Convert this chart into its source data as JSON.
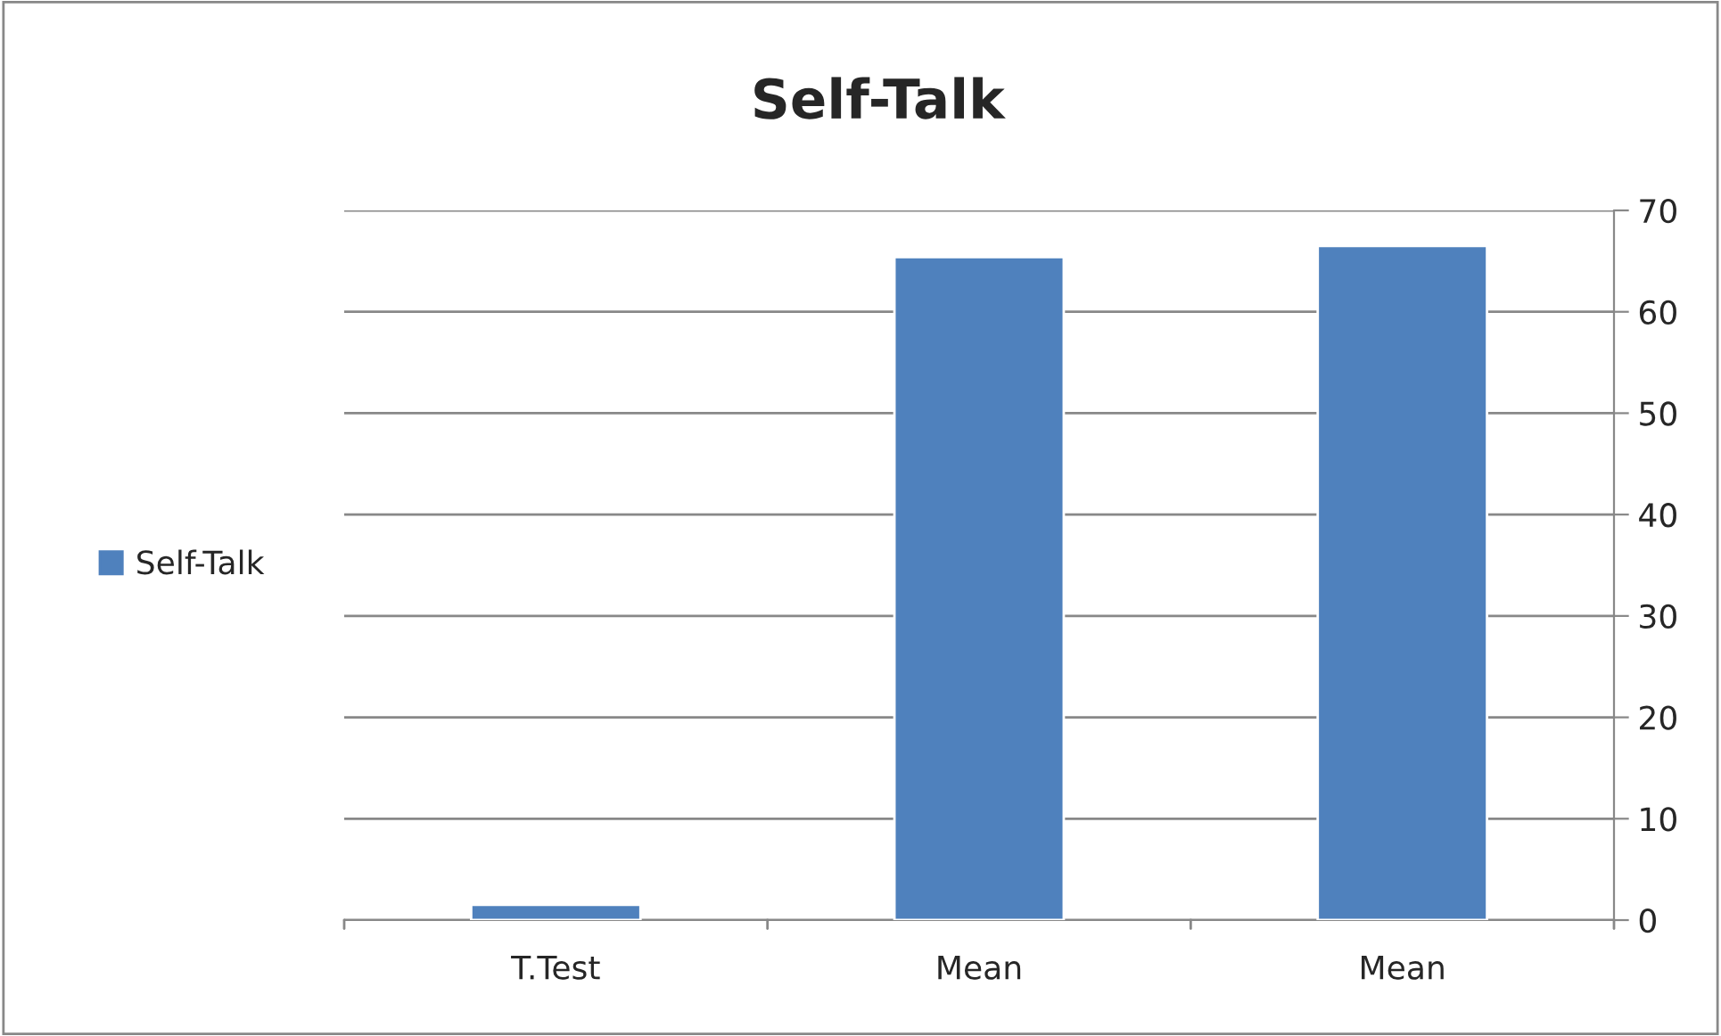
{
  "chart_data": {
    "type": "bar",
    "title": "Self-Talk",
    "categories": [
      "T.Test",
      "Mean",
      "Mean"
    ],
    "series": [
      {
        "name": "Self-Talk",
        "color": "#4f81bd",
        "values": [
          1.5,
          65.4,
          66.5
        ]
      }
    ],
    "ylim": [
      0,
      70
    ],
    "yticks": [
      0,
      10,
      20,
      30,
      40,
      50,
      60,
      70
    ],
    "grid": "y",
    "legend": "left"
  }
}
